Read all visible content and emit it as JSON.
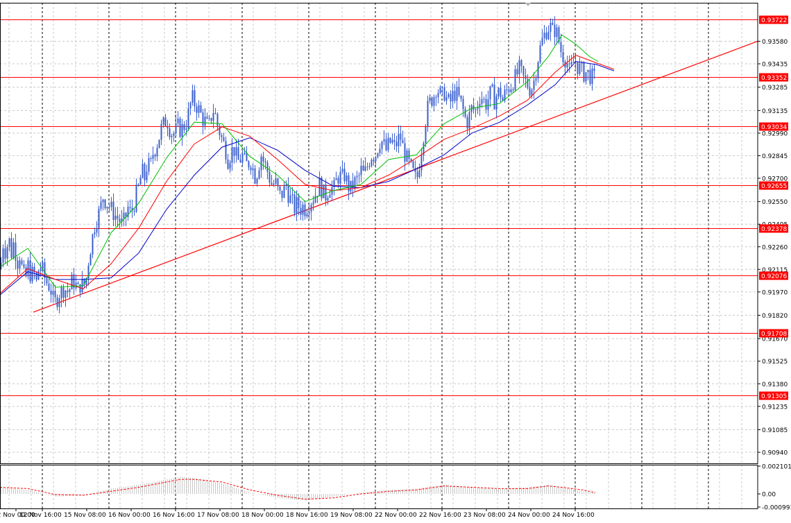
{
  "chart_data": {
    "type": "candlestick",
    "symbol_colors": {
      "candles": "#3a5fcd",
      "ma_fast": "#00c000",
      "ma_mid": "#ff0000",
      "ma_slow": "#0000c8",
      "levels": "#ff0000",
      "trendline": "#ff0000",
      "oscillator_histogram": "#c8c8c8",
      "oscillator_signal": "#ff0000"
    },
    "grid": true,
    "price_axis": {
      "min": 0.90869,
      "max": 0.93827,
      "ticks": [
        "0.93580",
        "0.93435",
        "0.93285",
        "0.93135",
        "0.92990",
        "0.92845",
        "0.92700",
        "0.92550",
        "0.92405",
        "0.92260",
        "0.92115",
        "0.91970",
        "0.91820",
        "0.91670",
        "0.91525",
        "0.91380",
        "0.91235",
        "0.91085",
        "0.90940"
      ]
    },
    "time_axis": {
      "labels": [
        "12 Nov 00:00",
        "12 Nov 16:00",
        "15 Nov 08:00",
        "16 Nov 00:00",
        "16 Nov 16:00",
        "17 Nov 08:00",
        "18 Nov 00:00",
        "18 Nov 16:00",
        "19 Nov 08:00",
        "22 Nov 00:00",
        "22 Nov 16:00",
        "23 Nov 08:00",
        "24 Nov 00:00",
        "24 Nov 16:00"
      ]
    },
    "levels": [
      "0.93722",
      "0.93352",
      "0.93034",
      "0.92655",
      "0.92378",
      "0.92076",
      "0.91708",
      "0.91305"
    ],
    "trendline": {
      "from": {
        "time": "12 Nov 16:00",
        "price": 0.9184
      },
      "to_price_at_right_edge": 0.9358
    },
    "close_path": [
      [
        0,
        0.9212
      ],
      [
        4,
        0.9228
      ],
      [
        8,
        0.9222
      ],
      [
        12,
        0.9232
      ],
      [
        16,
        0.9222
      ],
      [
        20,
        0.923
      ],
      [
        24,
        0.9215
      ],
      [
        28,
        0.9221
      ],
      [
        32,
        0.921
      ],
      [
        36,
        0.9204
      ],
      [
        40,
        0.9214
      ],
      [
        44,
        0.9207
      ],
      [
        48,
        0.921
      ],
      [
        52,
        0.9203
      ],
      [
        56,
        0.9214
      ],
      [
        60,
        0.9212
      ],
      [
        64,
        0.9206
      ],
      [
        68,
        0.9202
      ],
      [
        72,
        0.92
      ],
      [
        76,
        0.9192
      ],
      [
        80,
        0.919
      ],
      [
        84,
        0.9196
      ],
      [
        88,
        0.9197
      ],
      [
        92,
        0.92
      ],
      [
        96,
        0.9197
      ],
      [
        100,
        0.9199
      ],
      [
        104,
        0.9205
      ],
      [
        108,
        0.9202
      ],
      [
        112,
        0.9198
      ],
      [
        116,
        0.9203
      ],
      [
        120,
        0.92
      ],
      [
        124,
        0.9206
      ],
      [
        128,
        0.9221
      ],
      [
        132,
        0.923
      ],
      [
        136,
        0.924
      ],
      [
        140,
        0.9245
      ],
      [
        144,
        0.925
      ],
      [
        148,
        0.9258
      ],
      [
        152,
        0.9255
      ],
      [
        156,
        0.9253
      ],
      [
        160,
        0.925
      ],
      [
        164,
        0.9247
      ],
      [
        168,
        0.9245
      ],
      [
        172,
        0.9243
      ],
      [
        176,
        0.924
      ],
      [
        180,
        0.9244
      ],
      [
        184,
        0.9251
      ],
      [
        188,
        0.9247
      ],
      [
        192,
        0.9252
      ],
      [
        196,
        0.926
      ],
      [
        200,
        0.9265
      ],
      [
        204,
        0.9275
      ],
      [
        208,
        0.927
      ],
      [
        212,
        0.928
      ],
      [
        216,
        0.9276
      ],
      [
        220,
        0.9286
      ],
      [
        224,
        0.929
      ],
      [
        228,
        0.9295
      ],
      [
        232,
        0.9302
      ],
      [
        236,
        0.9305
      ],
      [
        240,
        0.9308
      ],
      [
        244,
        0.9302
      ],
      [
        248,
        0.9298
      ],
      [
        252,
        0.93
      ],
      [
        256,
        0.9303
      ],
      [
        260,
        0.9301
      ],
      [
        264,
        0.9303
      ],
      [
        268,
        0.9306
      ],
      [
        272,
        0.9313
      ],
      [
        276,
        0.9322
      ],
      [
        280,
        0.9318
      ],
      [
        284,
        0.9316
      ],
      [
        288,
        0.9312
      ],
      [
        292,
        0.9308
      ],
      [
        296,
        0.9306
      ],
      [
        300,
        0.9302
      ],
      [
        304,
        0.931
      ],
      [
        308,
        0.9315
      ],
      [
        312,
        0.9305
      ],
      [
        316,
        0.93
      ],
      [
        320,
        0.9294
      ],
      [
        324,
        0.929
      ],
      [
        328,
        0.9282
      ],
      [
        332,
        0.9286
      ],
      [
        336,
        0.929
      ],
      [
        340,
        0.9284
      ],
      [
        344,
        0.928
      ],
      [
        348,
        0.9285
      ],
      [
        352,
        0.9281
      ],
      [
        356,
        0.9278
      ],
      [
        360,
        0.9282
      ],
      [
        364,
        0.9276
      ],
      [
        368,
        0.927
      ],
      [
        372,
        0.9278
      ],
      [
        376,
        0.9285
      ],
      [
        380,
        0.928
      ],
      [
        384,
        0.9276
      ],
      [
        388,
        0.927
      ],
      [
        392,
        0.9265
      ],
      [
        396,
        0.9268
      ],
      [
        400,
        0.9262
      ],
      [
        404,
        0.9258
      ],
      [
        408,
        0.9262
      ],
      [
        412,
        0.9266
      ],
      [
        416,
        0.9258
      ],
      [
        420,
        0.9255
      ],
      [
        424,
        0.9251
      ],
      [
        428,
        0.9254
      ],
      [
        432,
        0.925
      ],
      [
        436,
        0.9252
      ],
      [
        440,
        0.925
      ],
      [
        444,
        0.9254
      ],
      [
        448,
        0.9256
      ],
      [
        452,
        0.9258
      ],
      [
        456,
        0.9262
      ],
      [
        460,
        0.9266
      ],
      [
        464,
        0.9262
      ],
      [
        468,
        0.9258
      ],
      [
        472,
        0.9262
      ],
      [
        476,
        0.9265
      ],
      [
        480,
        0.9262
      ],
      [
        484,
        0.9268
      ],
      [
        488,
        0.9272
      ],
      [
        492,
        0.927
      ],
      [
        496,
        0.9272
      ],
      [
        500,
        0.9267
      ],
      [
        504,
        0.9262
      ],
      [
        508,
        0.9266
      ],
      [
        512,
        0.9268
      ],
      [
        516,
        0.927
      ],
      [
        520,
        0.9275
      ],
      [
        524,
        0.9272
      ],
      [
        528,
        0.9276
      ],
      [
        532,
        0.9282
      ],
      [
        536,
        0.9286
      ],
      [
        540,
        0.9284
      ],
      [
        544,
        0.929
      ],
      [
        548,
        0.9295
      ],
      [
        552,
        0.9292
      ],
      [
        556,
        0.9288
      ],
      [
        560,
        0.9292
      ],
      [
        564,
        0.9294
      ],
      [
        568,
        0.929
      ],
      [
        572,
        0.9293
      ],
      [
        576,
        0.9298
      ],
      [
        580,
        0.929
      ],
      [
        584,
        0.9284
      ],
      [
        588,
        0.928
      ],
      [
        592,
        0.9276
      ],
      [
        596,
        0.9272
      ],
      [
        600,
        0.9268
      ],
      [
        604,
        0.928
      ],
      [
        608,
        0.9292
      ],
      [
        612,
        0.9305
      ],
      [
        616,
        0.9315
      ],
      [
        620,
        0.932
      ],
      [
        624,
        0.9322
      ],
      [
        628,
        0.9328
      ],
      [
        632,
        0.9326
      ],
      [
        636,
        0.9322
      ],
      [
        640,
        0.9325
      ],
      [
        644,
        0.932
      ],
      [
        648,
        0.9318
      ],
      [
        652,
        0.9323
      ],
      [
        656,
        0.9325
      ],
      [
        660,
        0.9322
      ],
      [
        664,
        0.9318
      ],
      [
        668,
        0.9312
      ],
      [
        672,
        0.9305
      ],
      [
        676,
        0.931
      ],
      [
        680,
        0.9316
      ],
      [
        684,
        0.9312
      ],
      [
        688,
        0.9318
      ],
      [
        692,
        0.9324
      ],
      [
        696,
        0.932
      ],
      [
        700,
        0.9318
      ],
      [
        704,
        0.9322
      ],
      [
        708,
        0.9326
      ],
      [
        712,
        0.932
      ],
      [
        716,
        0.9324
      ],
      [
        720,
        0.9326
      ],
      [
        724,
        0.932
      ],
      [
        728,
        0.9325
      ],
      [
        732,
        0.9328
      ],
      [
        736,
        0.933
      ],
      [
        740,
        0.9333
      ],
      [
        744,
        0.9336
      ],
      [
        748,
        0.934
      ],
      [
        752,
        0.9336
      ],
      [
        756,
        0.9332
      ],
      [
        760,
        0.933
      ],
      [
        764,
        0.9327
      ],
      [
        768,
        0.933
      ],
      [
        772,
        0.934
      ],
      [
        776,
        0.935
      ],
      [
        780,
        0.9357
      ],
      [
        784,
        0.9362
      ],
      [
        788,
        0.9366
      ],
      [
        792,
        0.9368
      ],
      [
        796,
        0.9364
      ],
      [
        800,
        0.9366
      ],
      [
        804,
        0.936
      ],
      [
        808,
        0.9352
      ],
      [
        812,
        0.9348
      ],
      [
        816,
        0.9346
      ],
      [
        820,
        0.9338
      ],
      [
        824,
        0.9342
      ],
      [
        828,
        0.9346
      ],
      [
        832,
        0.9342
      ],
      [
        836,
        0.934
      ],
      [
        840,
        0.9337
      ],
      [
        844,
        0.9338
      ],
      [
        848,
        0.9337
      ],
      [
        852,
        0.9335
      ],
      [
        856,
        0.9334
      ]
    ],
    "ma_fast": [
      [
        0,
        0.9213
      ],
      [
        40,
        0.9225
      ],
      [
        80,
        0.92
      ],
      [
        120,
        0.9201
      ],
      [
        160,
        0.9235
      ],
      [
        200,
        0.9254
      ],
      [
        240,
        0.9283
      ],
      [
        280,
        0.9306
      ],
      [
        320,
        0.9305
      ],
      [
        360,
        0.9284
      ],
      [
        400,
        0.9272
      ],
      [
        440,
        0.9255
      ],
      [
        480,
        0.9262
      ],
      [
        520,
        0.9266
      ],
      [
        560,
        0.9282
      ],
      [
        600,
        0.9285
      ],
      [
        640,
        0.9305
      ],
      [
        680,
        0.9315
      ],
      [
        720,
        0.9318
      ],
      [
        760,
        0.9332
      ],
      [
        790,
        0.9348
      ],
      [
        810,
        0.9362
      ],
      [
        830,
        0.9356
      ],
      [
        850,
        0.9348
      ],
      [
        862,
        0.9345
      ]
    ],
    "ma_mid": [
      [
        0,
        0.9196
      ],
      [
        40,
        0.9212
      ],
      [
        80,
        0.9205
      ],
      [
        120,
        0.9199
      ],
      [
        160,
        0.9215
      ],
      [
        200,
        0.9238
      ],
      [
        240,
        0.9268
      ],
      [
        280,
        0.9292
      ],
      [
        320,
        0.9303
      ],
      [
        360,
        0.9297
      ],
      [
        400,
        0.9282
      ],
      [
        440,
        0.9266
      ],
      [
        480,
        0.9262
      ],
      [
        520,
        0.9264
      ],
      [
        560,
        0.9272
      ],
      [
        600,
        0.9283
      ],
      [
        640,
        0.9295
      ],
      [
        680,
        0.9302
      ],
      [
        720,
        0.931
      ],
      [
        760,
        0.932
      ],
      [
        800,
        0.9338
      ],
      [
        830,
        0.9349
      ],
      [
        860,
        0.9344
      ],
      [
        885,
        0.934
      ]
    ],
    "ma_slow": [
      [
        0,
        0.9195
      ],
      [
        40,
        0.921
      ],
      [
        80,
        0.9205
      ],
      [
        120,
        0.9205
      ],
      [
        160,
        0.9206
      ],
      [
        200,
        0.9222
      ],
      [
        240,
        0.925
      ],
      [
        280,
        0.9272
      ],
      [
        320,
        0.929
      ],
      [
        360,
        0.9296
      ],
      [
        400,
        0.9288
      ],
      [
        440,
        0.9275
      ],
      [
        480,
        0.9265
      ],
      [
        520,
        0.9264
      ],
      [
        560,
        0.9268
      ],
      [
        600,
        0.9276
      ],
      [
        640,
        0.9285
      ],
      [
        680,
        0.9299
      ],
      [
        720,
        0.9306
      ],
      [
        760,
        0.9317
      ],
      [
        800,
        0.933
      ],
      [
        830,
        0.9345
      ],
      [
        860,
        0.9343
      ],
      [
        885,
        0.9339
      ]
    ],
    "oscillator": {
      "ticks": [
        "0.002101",
        "0.00",
        "-0.000993"
      ],
      "min": -0.000993,
      "max": 0.002101,
      "histogram": [
        [
          0,
          0.0005
        ],
        [
          40,
          0.0003
        ],
        [
          80,
          -0.0002
        ],
        [
          120,
          -0.0001
        ],
        [
          160,
          0.0004
        ],
        [
          200,
          0.0007
        ],
        [
          240,
          0.0011
        ],
        [
          260,
          0.0013
        ],
        [
          280,
          0.0012
        ],
        [
          320,
          0.0008
        ],
        [
          360,
          0.0001
        ],
        [
          400,
          -0.0003
        ],
        [
          440,
          -0.0005
        ],
        [
          480,
          -0.0002
        ],
        [
          520,
          0.0001
        ],
        [
          560,
          0.0003
        ],
        [
          600,
          0.0004
        ],
        [
          640,
          0.0007
        ],
        [
          680,
          0.0005
        ],
        [
          720,
          0.0004
        ],
        [
          760,
          0.0005
        ],
        [
          790,
          0.0007
        ],
        [
          810,
          0.0005
        ],
        [
          840,
          0.0002
        ],
        [
          858,
          0.0001
        ]
      ],
      "signal": [
        [
          0,
          0.0005
        ],
        [
          40,
          0.0004
        ],
        [
          80,
          -5e-05
        ],
        [
          120,
          -0.0001
        ],
        [
          160,
          0.0002
        ],
        [
          200,
          0.0005
        ],
        [
          240,
          0.0009
        ],
        [
          260,
          0.0011
        ],
        [
          280,
          0.0011
        ],
        [
          320,
          0.0009
        ],
        [
          360,
          0.0003
        ],
        [
          400,
          -0.0001
        ],
        [
          440,
          -0.0004
        ],
        [
          480,
          -0.0003
        ],
        [
          520,
          0.0
        ],
        [
          560,
          0.0002
        ],
        [
          600,
          0.0003
        ],
        [
          640,
          0.0006
        ],
        [
          680,
          0.0005
        ],
        [
          720,
          0.0004
        ],
        [
          760,
          0.0004
        ],
        [
          790,
          0.0006
        ],
        [
          810,
          0.0005
        ],
        [
          840,
          0.0003
        ],
        [
          858,
          0.0001
        ]
      ]
    }
  }
}
